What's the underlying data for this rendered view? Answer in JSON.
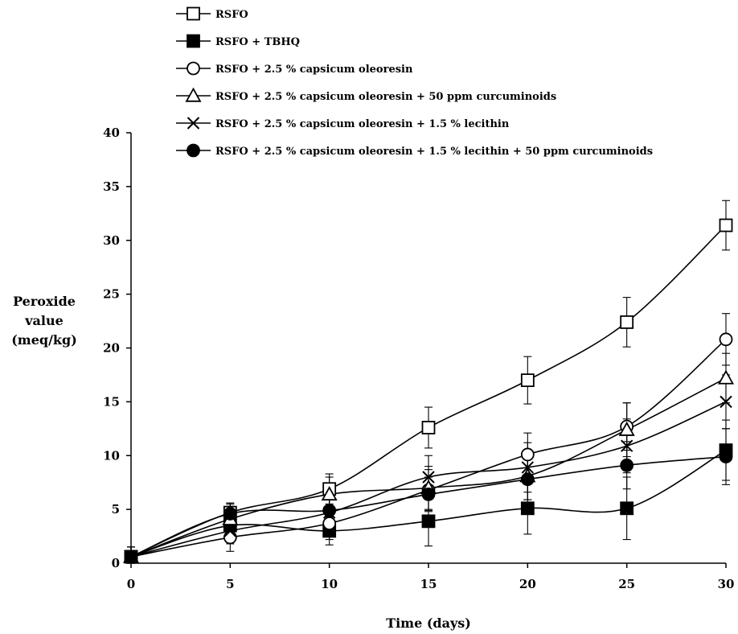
{
  "chart_data": {
    "type": "line",
    "title": "",
    "xlabel": "Time (days)",
    "ylabel_lines": [
      "Peroxide",
      "value",
      "(meq/kg)"
    ],
    "x": [
      0,
      5,
      10,
      15,
      20,
      25,
      30
    ],
    "xlim": [
      0,
      30
    ],
    "ylim": [
      0,
      40
    ],
    "x_ticks": [
      0,
      5,
      10,
      15,
      20,
      25,
      30
    ],
    "y_ticks": [
      0,
      5,
      10,
      15,
      20,
      25,
      30,
      35,
      40
    ],
    "grid": false,
    "legend_position": "top",
    "series": [
      {
        "name": "RSFO",
        "marker": "open-square",
        "values": [
          0.6,
          4.7,
          6.9,
          12.6,
          17.0,
          22.4,
          31.4
        ],
        "errors": [
          0.9,
          0.8,
          1.4,
          1.9,
          2.2,
          2.3,
          2.3
        ]
      },
      {
        "name": "RSFO + TBHQ",
        "marker": "filled-square",
        "values": [
          0.6,
          3.5,
          3.0,
          3.9,
          5.1,
          5.1,
          10.5
        ],
        "errors": [
          0.9,
          1.3,
          1.3,
          2.3,
          2.4,
          2.9,
          2.8
        ]
      },
      {
        "name": "RSFO + 2.5 % capsicum oleoresin",
        "marker": "open-circle",
        "values": [
          0.6,
          2.4,
          3.7,
          6.8,
          10.1,
          12.7,
          20.8
        ],
        "errors": [
          0.9,
          1.3,
          1.5,
          1.9,
          2.0,
          2.2,
          2.4
        ]
      },
      {
        "name": "RSFO + 2.5 % capsicum oleoresin + 50 ppm curcuminoids",
        "marker": "open-triangle",
        "values": [
          0.6,
          4.1,
          6.4,
          7.0,
          8.1,
          12.4,
          17.2
        ],
        "errors": [
          0.9,
          1.2,
          1.6,
          2.0,
          2.2,
          2.5,
          2.3
        ]
      },
      {
        "name": "RSFO + 2.5 % capsicum oleoresin + 1.5 % lecithin",
        "marker": "x-cross",
        "values": [
          0.6,
          3.0,
          4.7,
          8.0,
          8.9,
          10.9,
          15.0
        ],
        "errors": [
          0.9,
          1.2,
          1.5,
          2.0,
          2.3,
          2.5,
          2.5
        ]
      },
      {
        "name": "RSFO + 2.5 % capsicum oleoresin + 1.5 % lecithin + 50 ppm curcuminoids",
        "marker": "filled-circle",
        "values": [
          0.6,
          4.6,
          4.9,
          6.4,
          7.8,
          9.1,
          9.9
        ],
        "errors": [
          0.9,
          1.0,
          1.2,
          1.6,
          1.9,
          2.2,
          2.6
        ]
      }
    ]
  }
}
